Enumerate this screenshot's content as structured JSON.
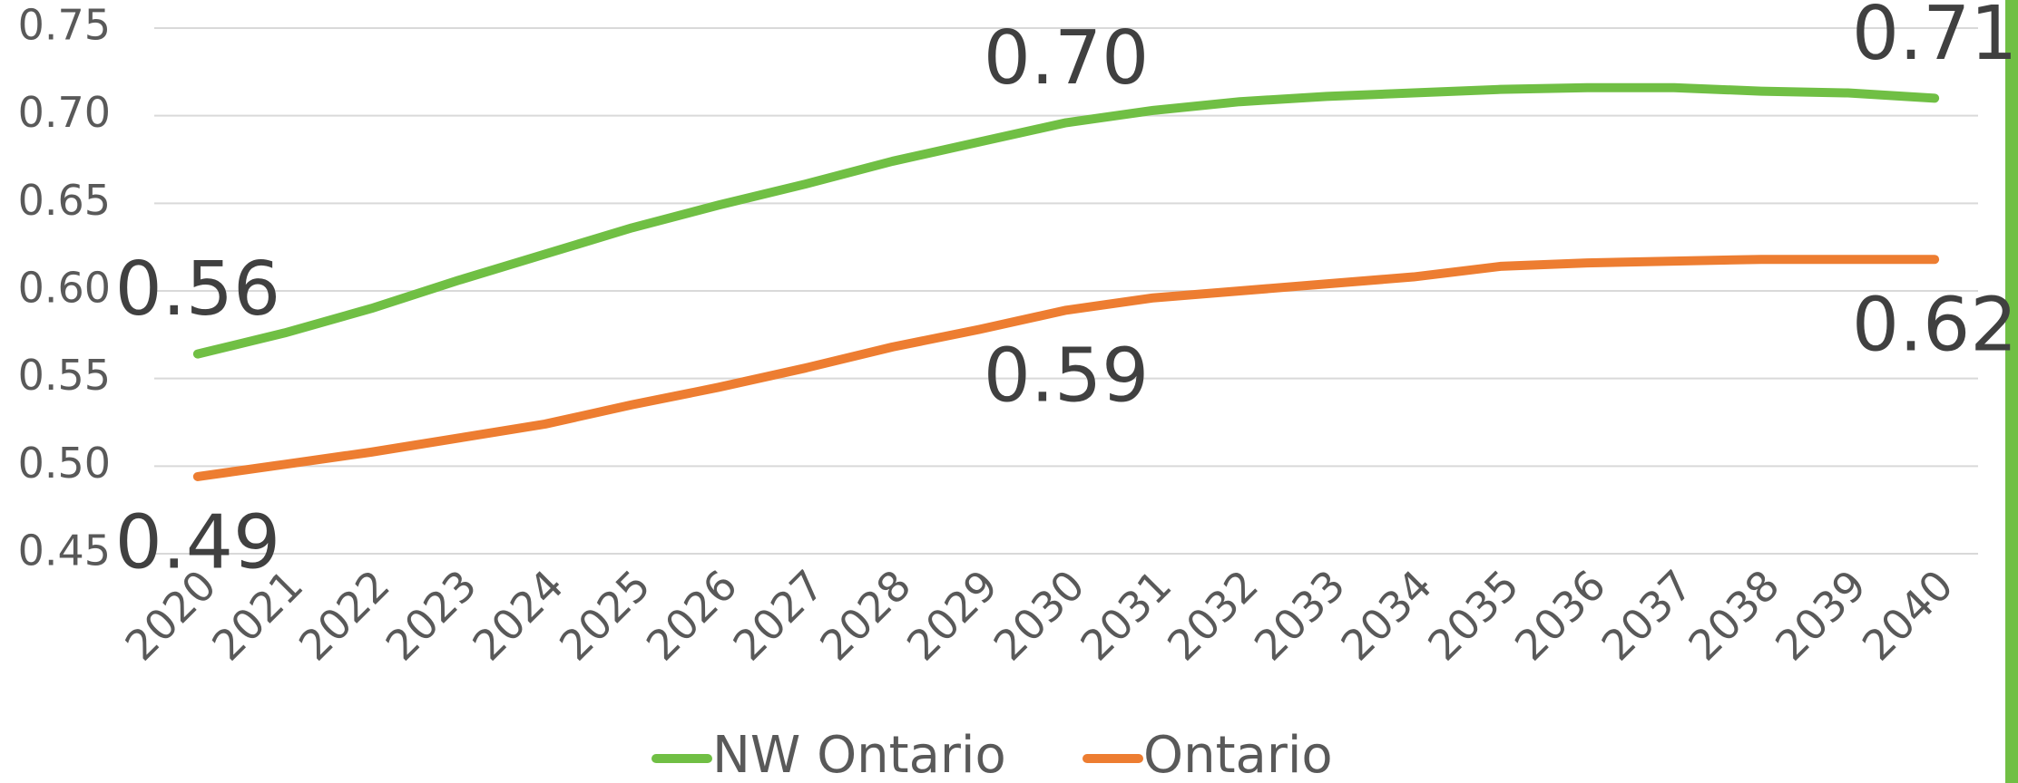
{
  "chart_data": {
    "type": "line",
    "categories": [
      "2020",
      "2021",
      "2022",
      "2023",
      "2024",
      "2025",
      "2026",
      "2027",
      "2028",
      "2029",
      "2030",
      "2031",
      "2032",
      "2033",
      "2034",
      "2035",
      "2036",
      "2037",
      "2038",
      "2039",
      "2040"
    ],
    "series": [
      {
        "name": "NW Ontario",
        "color": "#70bf44",
        "values": [
          0.564,
          0.576,
          0.59,
          0.606,
          0.621,
          0.636,
          0.649,
          0.661,
          0.674,
          0.685,
          0.696,
          0.703,
          0.708,
          0.711,
          0.713,
          0.715,
          0.716,
          0.716,
          0.714,
          0.713,
          0.71
        ],
        "value_labels": [
          "0.56",
          null,
          null,
          null,
          null,
          null,
          null,
          null,
          null,
          null,
          "0.70",
          null,
          null,
          null,
          null,
          null,
          null,
          null,
          null,
          null,
          "0.71"
        ]
      },
      {
        "name": "Ontario",
        "color": "#ed7d31",
        "values": [
          0.494,
          0.501,
          0.508,
          0.516,
          0.524,
          0.535,
          0.545,
          0.556,
          0.568,
          0.578,
          0.589,
          0.596,
          0.6,
          0.604,
          0.608,
          0.614,
          0.616,
          0.617,
          0.618,
          0.618,
          0.618
        ],
        "value_labels": [
          "0.49",
          null,
          null,
          null,
          null,
          null,
          null,
          null,
          null,
          null,
          "0.59",
          null,
          null,
          null,
          null,
          null,
          null,
          null,
          null,
          null,
          "0.62"
        ]
      }
    ],
    "ylim": [
      0.45,
      0.75
    ],
    "yticks": [
      0.45,
      {
        "value": 0.5,
        "label": "0.50"
      },
      0.55,
      {
        "value": 0.6,
        "label": "0.60"
      },
      0.65,
      {
        "value": 0.7,
        "label": "0.70"
      },
      0.75
    ],
    "grid": true,
    "legend": "bottom"
  }
}
